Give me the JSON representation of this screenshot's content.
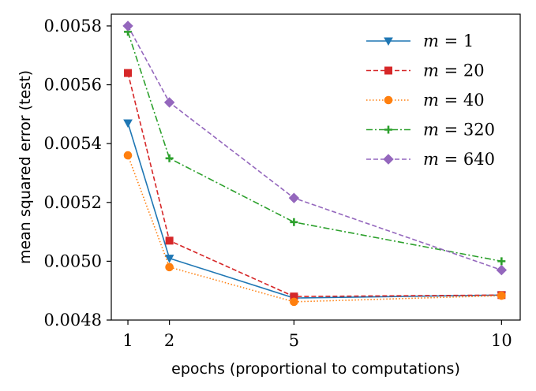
{
  "chart_data": {
    "type": "line",
    "xlabel": "epochs (proportional to computations)",
    "ylabel": "mean squared error (test)",
    "xlim": [
      0.6,
      10.45
    ],
    "ylim": [
      0.0048,
      0.00584
    ],
    "xticks": [
      1,
      2,
      5,
      10
    ],
    "xtick_labels": [
      "1",
      "2",
      "5",
      "10"
    ],
    "yticks": [
      0.0048,
      0.005,
      0.0052,
      0.0054,
      0.0056,
      0.0058
    ],
    "ytick_labels": [
      "0.0048",
      "0.0050",
      "0.0052",
      "0.0054",
      "0.0056",
      "0.0058"
    ],
    "grid": false,
    "legend_position": "top-right",
    "x": [
      1,
      2,
      5,
      10
    ],
    "series": [
      {
        "name": "m = 1",
        "name_var": "m",
        "name_rest": " = 1",
        "values": [
          0.00547,
          0.00501,
          0.004875,
          0.004885
        ],
        "color": "#1f77b4",
        "marker": "triangle-down",
        "dash": "solid"
      },
      {
        "name": "m = 20",
        "name_var": "m",
        "name_rest": " = 20",
        "values": [
          0.00564,
          0.00507,
          0.00488,
          0.004885
        ],
        "color": "#d62728",
        "marker": "square",
        "dash": "dashed"
      },
      {
        "name": "m = 40",
        "name_var": "m",
        "name_rest": " = 40",
        "values": [
          0.00536,
          0.00498,
          0.004862,
          0.004883
        ],
        "color": "#ff7f0e",
        "marker": "circle",
        "dash": "dotted"
      },
      {
        "name": "m = 320",
        "name_var": "m",
        "name_rest": " = 320",
        "values": [
          0.00578,
          0.00535,
          0.005133,
          0.005
        ],
        "color": "#2ca02c",
        "marker": "plus",
        "dash": "dashdot"
      },
      {
        "name": "m = 640",
        "name_var": "m",
        "name_rest": " = 640",
        "values": [
          0.0058,
          0.00554,
          0.005215,
          0.00497
        ],
        "color": "#9467bd",
        "marker": "diamond",
        "dash": "dashed"
      }
    ]
  }
}
